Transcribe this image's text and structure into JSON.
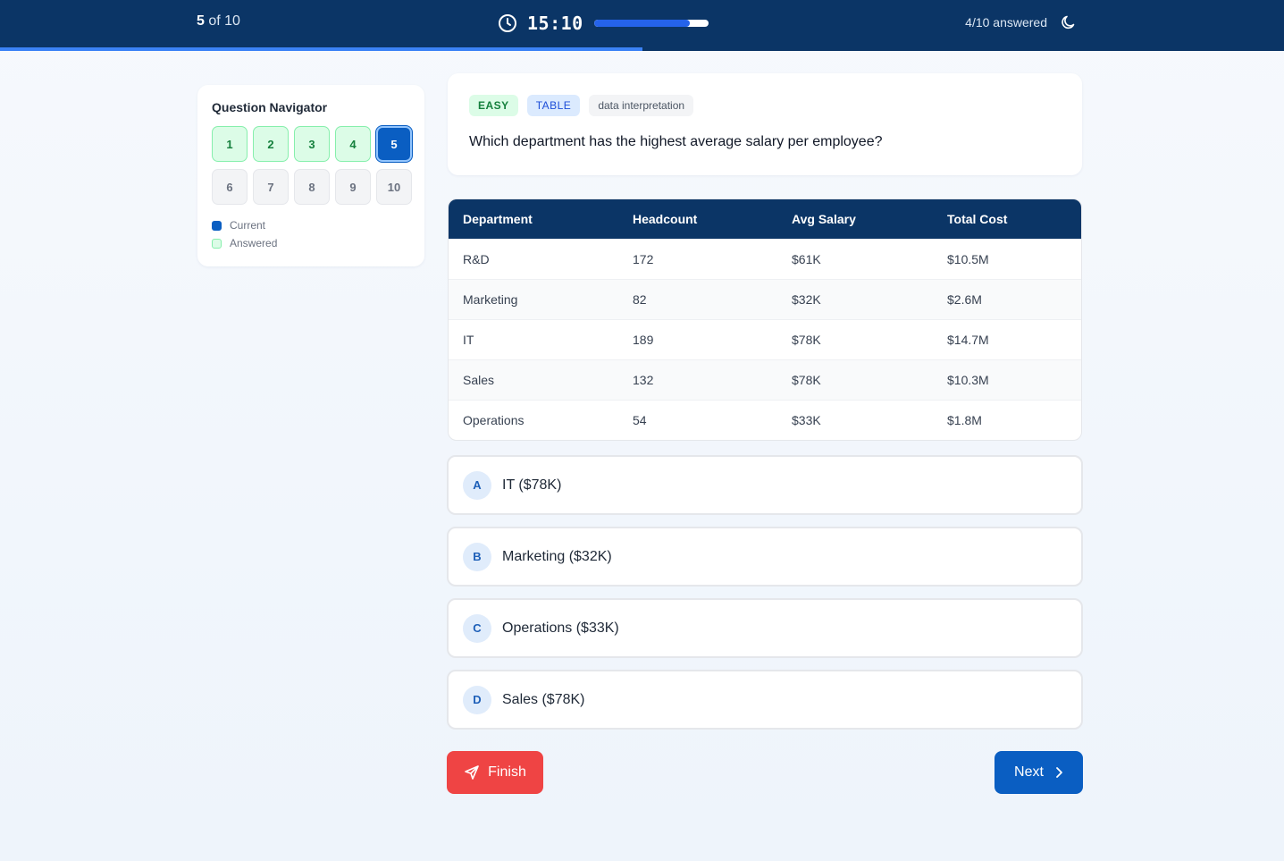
{
  "header": {
    "current_question": "5",
    "of_total": "of 10",
    "timer": "15:10",
    "timer_remaining_fraction": 0.84,
    "answered_label": "4/10 answered",
    "overall_progress_fraction": 0.5,
    "icons": [
      "clock-icon",
      "moon-icon"
    ]
  },
  "navigator": {
    "title": "Question Navigator",
    "buttons": [
      {
        "label": "1",
        "state": "answered"
      },
      {
        "label": "2",
        "state": "answered"
      },
      {
        "label": "3",
        "state": "answered"
      },
      {
        "label": "4",
        "state": "answered"
      },
      {
        "label": "5",
        "state": "current"
      },
      {
        "label": "6",
        "state": "idle"
      },
      {
        "label": "7",
        "state": "idle"
      },
      {
        "label": "8",
        "state": "idle"
      },
      {
        "label": "9",
        "state": "idle"
      },
      {
        "label": "10",
        "state": "idle"
      }
    ],
    "legend": {
      "current": "Current",
      "answered": "Answered"
    }
  },
  "question": {
    "difficulty": "EASY",
    "type": "TABLE",
    "topic": "data interpretation",
    "text": "Which department has the highest average salary per employee?"
  },
  "table": {
    "headers": [
      "Department",
      "Headcount",
      "Avg Salary",
      "Total Cost"
    ],
    "rows": [
      [
        "R&D",
        "172",
        "$61K",
        "$10.5M"
      ],
      [
        "Marketing",
        "82",
        "$32K",
        "$2.6M"
      ],
      [
        "IT",
        "189",
        "$78K",
        "$14.7M"
      ],
      [
        "Sales",
        "132",
        "$78K",
        "$10.3M"
      ],
      [
        "Operations",
        "54",
        "$33K",
        "$1.8M"
      ]
    ]
  },
  "options": [
    {
      "letter": "A",
      "text": "IT ($78K)"
    },
    {
      "letter": "B",
      "text": "Marketing ($32K)"
    },
    {
      "letter": "C",
      "text": "Operations ($33K)"
    },
    {
      "letter": "D",
      "text": "Sales ($78K)"
    }
  ],
  "actions": {
    "finish_label": "Finish",
    "next_label": "Next"
  },
  "colors": {
    "header_bg": "#0b3566",
    "accent": "#0a5ec2",
    "danger": "#ef4444",
    "answered_green": "#dcfce7"
  }
}
